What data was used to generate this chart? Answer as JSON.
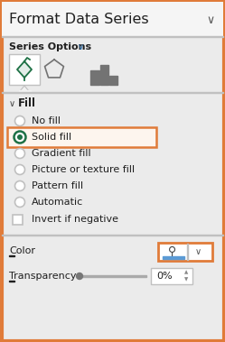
{
  "bg_color": "#ebebeb",
  "panel_bg": "#f2f2f2",
  "border_color": "#e07b39",
  "title": "Format Data Series",
  "title_fontsize": 11.5,
  "series_options_text": "Series Options",
  "series_options_chevron_color": "#2e75b6",
  "fill_section": "Fill",
  "radio_options": [
    "No fill",
    "Solid fill",
    "Gradient fill",
    "Picture or texture fill",
    "Pattern fill",
    "Automatic"
  ],
  "checkbox_option": "Invert if negative",
  "selected_index": 1,
  "color_label": "Color",
  "transparency_label": "Transparency",
  "transparency_value": "0%",
  "dark_text": "#1f1f1f",
  "gray_text": "#666666",
  "radio_selected_color": "#1e7145",
  "highlight_orange": "#e07b39",
  "white": "#ffffff",
  "light_border": "#c0c0c0",
  "icon_green": "#1e7145",
  "icon_gray": "#737373",
  "title_bg": "#f5f5f5",
  "underline_color": "#5b9bd5"
}
